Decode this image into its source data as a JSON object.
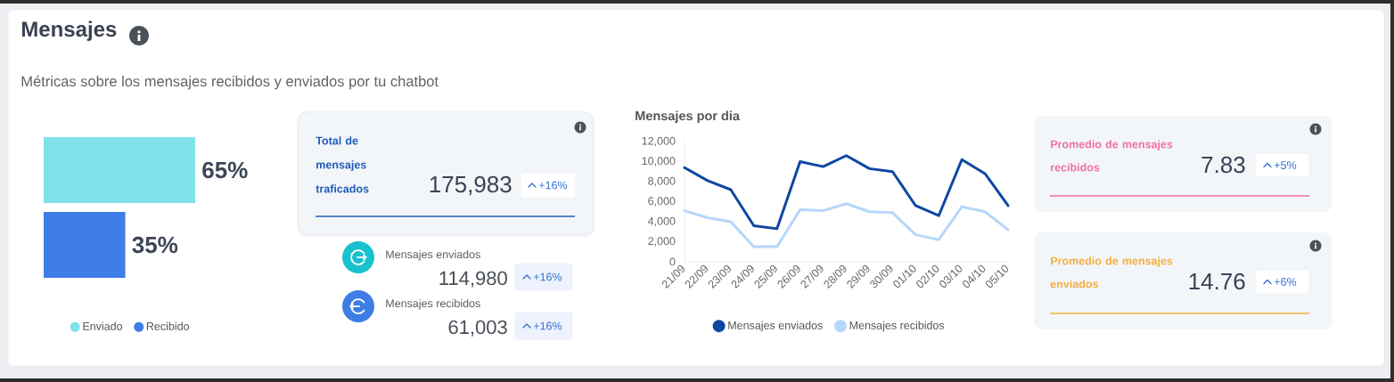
{
  "chart_data": [
    {
      "type": "bar",
      "title": "Mensajes",
      "subtitle": "Métricas sobre los mensajes recibidos y enviados por tu chatbot",
      "orientation": "horizontal",
      "categories": [
        null
      ],
      "series": [
        {
          "name": "Enviado",
          "color": "#80e2e8",
          "values": [
            65
          ],
          "value_labels": [
            "65%"
          ]
        },
        {
          "name": "Recibido",
          "color": "#3e7de8",
          "values": [
            35
          ],
          "value_labels": [
            "35%"
          ]
        }
      ],
      "legend": "bottom"
    },
    {
      "type": "other",
      "title": "Total de mensajes traficados",
      "color": "#1f5cb9",
      "annotations": [
        "175,983",
        "+16%",
        "Mensajes enviados",
        "114,980",
        "+16%",
        "Mensajes recibidos",
        "61,003",
        "+16%"
      ]
    },
    {
      "type": "line",
      "title": "Mensajes por dia",
      "categories": [
        "21/09",
        "22/09",
        "23/09",
        "24/09",
        "25/09",
        "26/09",
        "27/09",
        "28/09",
        "29/09",
        "30/09",
        "01/10",
        "02/10",
        "03/10",
        "04/10",
        "05/10"
      ],
      "series": [
        {
          "name": "Mensajes enviados",
          "color": "#0e47a1",
          "values": [
            9400,
            8100,
            7200,
            3600,
            3300,
            10000,
            9500,
            10600,
            9300,
            9000,
            5600,
            4600,
            10200,
            8800,
            5600
          ]
        },
        {
          "name": "Mensajes recibidos",
          "color": "#b6d6fb",
          "values": [
            5100,
            4400,
            4000,
            1500,
            1500,
            5200,
            5100,
            5800,
            5000,
            4900,
            2700,
            2200,
            5500,
            5000,
            3200
          ]
        }
      ],
      "ylim": [
        0,
        12000
      ],
      "yticks": [
        0,
        {
          "value": 2000,
          "label": "2,000"
        },
        {
          "value": 4000,
          "label": "4,000"
        },
        {
          "value": 6000,
          "label": "6,000"
        },
        {
          "value": 8000,
          "label": "8,000"
        },
        {
          "value": 10000,
          "label": "10,000"
        },
        {
          "value": 12000,
          "label": "12,000"
        }
      ],
      "legend": "bottom"
    },
    {
      "type": "other",
      "title": "Promedio de mensajes recibidos",
      "color": "#f0709c",
      "annotations": [
        "7.83",
        "+5%"
      ]
    },
    {
      "type": "other",
      "title": "Promedio de mensajes enviados",
      "color": "#f4ae3d",
      "annotations": [
        "14.76",
        "+6%"
      ]
    }
  ]
}
